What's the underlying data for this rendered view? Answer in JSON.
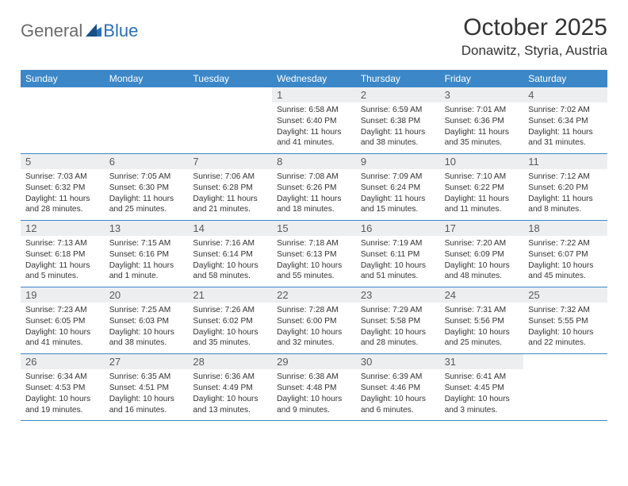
{
  "logo": {
    "text1": "General",
    "text2": "Blue",
    "general_color": "#6b6b6b",
    "blue_color": "#2a6fb5"
  },
  "header": {
    "title": "October 2025",
    "location": "Donawitz, Styria, Austria"
  },
  "style": {
    "weekday_bg": "#3b87c8",
    "weekday_fg": "#ffffff",
    "daynum_bg": "#eceef0",
    "border_color": "#3b87c8",
    "page_bg": "#ffffff",
    "title_fontsize": 30,
    "location_fontsize": 17,
    "weekday_fontsize": 12,
    "daynum_fontsize": 13,
    "info_fontsize": 10.2
  },
  "weekdays": [
    "Sunday",
    "Monday",
    "Tuesday",
    "Wednesday",
    "Thursday",
    "Friday",
    "Saturday"
  ],
  "weeks": [
    [
      {
        "n": "",
        "sunrise": "",
        "sunset": "",
        "daylight": ""
      },
      {
        "n": "",
        "sunrise": "",
        "sunset": "",
        "daylight": ""
      },
      {
        "n": "",
        "sunrise": "",
        "sunset": "",
        "daylight": ""
      },
      {
        "n": "1",
        "sunrise": "Sunrise: 6:58 AM",
        "sunset": "Sunset: 6:40 PM",
        "daylight": "Daylight: 11 hours and 41 minutes."
      },
      {
        "n": "2",
        "sunrise": "Sunrise: 6:59 AM",
        "sunset": "Sunset: 6:38 PM",
        "daylight": "Daylight: 11 hours and 38 minutes."
      },
      {
        "n": "3",
        "sunrise": "Sunrise: 7:01 AM",
        "sunset": "Sunset: 6:36 PM",
        "daylight": "Daylight: 11 hours and 35 minutes."
      },
      {
        "n": "4",
        "sunrise": "Sunrise: 7:02 AM",
        "sunset": "Sunset: 6:34 PM",
        "daylight": "Daylight: 11 hours and 31 minutes."
      }
    ],
    [
      {
        "n": "5",
        "sunrise": "Sunrise: 7:03 AM",
        "sunset": "Sunset: 6:32 PM",
        "daylight": "Daylight: 11 hours and 28 minutes."
      },
      {
        "n": "6",
        "sunrise": "Sunrise: 7:05 AM",
        "sunset": "Sunset: 6:30 PM",
        "daylight": "Daylight: 11 hours and 25 minutes."
      },
      {
        "n": "7",
        "sunrise": "Sunrise: 7:06 AM",
        "sunset": "Sunset: 6:28 PM",
        "daylight": "Daylight: 11 hours and 21 minutes."
      },
      {
        "n": "8",
        "sunrise": "Sunrise: 7:08 AM",
        "sunset": "Sunset: 6:26 PM",
        "daylight": "Daylight: 11 hours and 18 minutes."
      },
      {
        "n": "9",
        "sunrise": "Sunrise: 7:09 AM",
        "sunset": "Sunset: 6:24 PM",
        "daylight": "Daylight: 11 hours and 15 minutes."
      },
      {
        "n": "10",
        "sunrise": "Sunrise: 7:10 AM",
        "sunset": "Sunset: 6:22 PM",
        "daylight": "Daylight: 11 hours and 11 minutes."
      },
      {
        "n": "11",
        "sunrise": "Sunrise: 7:12 AM",
        "sunset": "Sunset: 6:20 PM",
        "daylight": "Daylight: 11 hours and 8 minutes."
      }
    ],
    [
      {
        "n": "12",
        "sunrise": "Sunrise: 7:13 AM",
        "sunset": "Sunset: 6:18 PM",
        "daylight": "Daylight: 11 hours and 5 minutes."
      },
      {
        "n": "13",
        "sunrise": "Sunrise: 7:15 AM",
        "sunset": "Sunset: 6:16 PM",
        "daylight": "Daylight: 11 hours and 1 minute."
      },
      {
        "n": "14",
        "sunrise": "Sunrise: 7:16 AM",
        "sunset": "Sunset: 6:14 PM",
        "daylight": "Daylight: 10 hours and 58 minutes."
      },
      {
        "n": "15",
        "sunrise": "Sunrise: 7:18 AM",
        "sunset": "Sunset: 6:13 PM",
        "daylight": "Daylight: 10 hours and 55 minutes."
      },
      {
        "n": "16",
        "sunrise": "Sunrise: 7:19 AM",
        "sunset": "Sunset: 6:11 PM",
        "daylight": "Daylight: 10 hours and 51 minutes."
      },
      {
        "n": "17",
        "sunrise": "Sunrise: 7:20 AM",
        "sunset": "Sunset: 6:09 PM",
        "daylight": "Daylight: 10 hours and 48 minutes."
      },
      {
        "n": "18",
        "sunrise": "Sunrise: 7:22 AM",
        "sunset": "Sunset: 6:07 PM",
        "daylight": "Daylight: 10 hours and 45 minutes."
      }
    ],
    [
      {
        "n": "19",
        "sunrise": "Sunrise: 7:23 AM",
        "sunset": "Sunset: 6:05 PM",
        "daylight": "Daylight: 10 hours and 41 minutes."
      },
      {
        "n": "20",
        "sunrise": "Sunrise: 7:25 AM",
        "sunset": "Sunset: 6:03 PM",
        "daylight": "Daylight: 10 hours and 38 minutes."
      },
      {
        "n": "21",
        "sunrise": "Sunrise: 7:26 AM",
        "sunset": "Sunset: 6:02 PM",
        "daylight": "Daylight: 10 hours and 35 minutes."
      },
      {
        "n": "22",
        "sunrise": "Sunrise: 7:28 AM",
        "sunset": "Sunset: 6:00 PM",
        "daylight": "Daylight: 10 hours and 32 minutes."
      },
      {
        "n": "23",
        "sunrise": "Sunrise: 7:29 AM",
        "sunset": "Sunset: 5:58 PM",
        "daylight": "Daylight: 10 hours and 28 minutes."
      },
      {
        "n": "24",
        "sunrise": "Sunrise: 7:31 AM",
        "sunset": "Sunset: 5:56 PM",
        "daylight": "Daylight: 10 hours and 25 minutes."
      },
      {
        "n": "25",
        "sunrise": "Sunrise: 7:32 AM",
        "sunset": "Sunset: 5:55 PM",
        "daylight": "Daylight: 10 hours and 22 minutes."
      }
    ],
    [
      {
        "n": "26",
        "sunrise": "Sunrise: 6:34 AM",
        "sunset": "Sunset: 4:53 PM",
        "daylight": "Daylight: 10 hours and 19 minutes."
      },
      {
        "n": "27",
        "sunrise": "Sunrise: 6:35 AM",
        "sunset": "Sunset: 4:51 PM",
        "daylight": "Daylight: 10 hours and 16 minutes."
      },
      {
        "n": "28",
        "sunrise": "Sunrise: 6:36 AM",
        "sunset": "Sunset: 4:49 PM",
        "daylight": "Daylight: 10 hours and 13 minutes."
      },
      {
        "n": "29",
        "sunrise": "Sunrise: 6:38 AM",
        "sunset": "Sunset: 4:48 PM",
        "daylight": "Daylight: 10 hours and 9 minutes."
      },
      {
        "n": "30",
        "sunrise": "Sunrise: 6:39 AM",
        "sunset": "Sunset: 4:46 PM",
        "daylight": "Daylight: 10 hours and 6 minutes."
      },
      {
        "n": "31",
        "sunrise": "Sunrise: 6:41 AM",
        "sunset": "Sunset: 4:45 PM",
        "daylight": "Daylight: 10 hours and 3 minutes."
      },
      {
        "n": "",
        "sunrise": "",
        "sunset": "",
        "daylight": ""
      }
    ]
  ]
}
